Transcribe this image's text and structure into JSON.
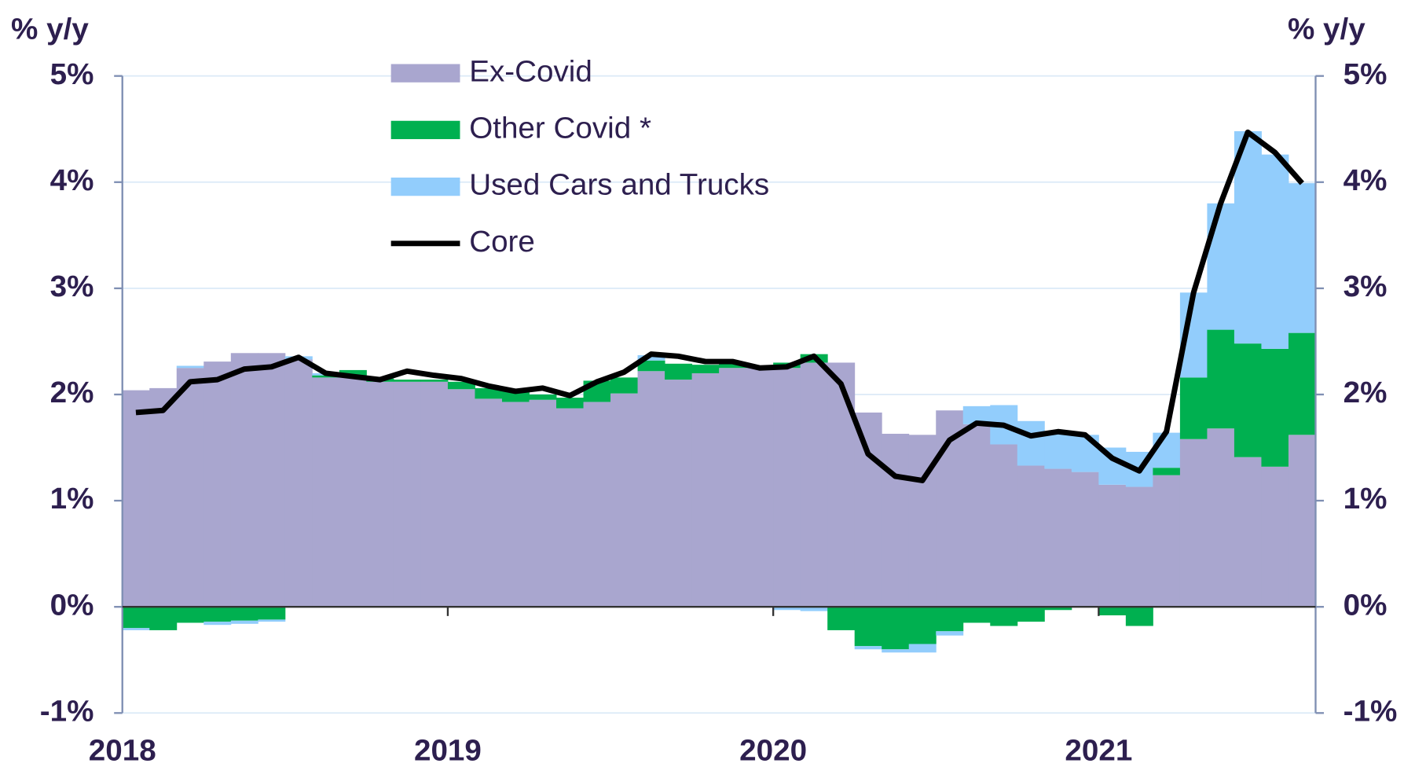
{
  "chart_data": {
    "type": "bar",
    "stacked": true,
    "y_title": "% y/y",
    "y2_title": "% y/y",
    "categories": [
      "2018",
      null,
      null,
      null,
      null,
      null,
      null,
      null,
      null,
      null,
      null,
      null,
      "2019",
      null,
      null,
      null,
      null,
      null,
      null,
      null,
      null,
      null,
      null,
      null,
      "2020",
      null,
      null,
      null,
      null,
      null,
      null,
      null,
      null,
      null,
      null,
      null,
      "2021",
      null,
      null,
      null,
      null,
      null,
      null,
      null
    ],
    "ylim": [
      -1,
      5
    ],
    "yticks": [
      {
        "value": -1,
        "label": "-1%"
      },
      {
        "value": 0,
        "label": "0%"
      },
      {
        "value": 1,
        "label": "1%"
      },
      {
        "value": 2,
        "label": "2%"
      },
      {
        "value": 3,
        "label": "3%"
      },
      {
        "value": 4,
        "label": "4%"
      },
      {
        "value": 5,
        "label": "5%"
      }
    ],
    "y2lim": [
      -1,
      5
    ],
    "y2ticks": [
      {
        "value": -1,
        "label": "-1%"
      },
      {
        "value": 0,
        "label": "0%"
      },
      {
        "value": 1,
        "label": "1%"
      },
      {
        "value": 2,
        "label": "2%"
      },
      {
        "value": 3,
        "label": "3%"
      },
      {
        "value": 4,
        "label": "4%"
      },
      {
        "value": 5,
        "label": "5%"
      }
    ],
    "grid": true,
    "legend": "top",
    "series": [
      {
        "name": "Ex-Covid",
        "color": "#a9a6cf",
        "type": "bar",
        "values": [
          2.04,
          2.06,
          2.25,
          2.31,
          2.39,
          2.39,
          2.33,
          2.16,
          2.18,
          2.12,
          2.12,
          2.12,
          2.05,
          1.96,
          1.93,
          1.95,
          1.87,
          1.93,
          2.01,
          2.22,
          2.14,
          2.2,
          2.25,
          2.25,
          2.25,
          2.3,
          2.3,
          1.83,
          1.63,
          1.62,
          1.85,
          1.72,
          1.53,
          1.33,
          1.3,
          1.27,
          1.15,
          1.13,
          1.24,
          1.58,
          1.68,
          1.41,
          1.32,
          1.62
        ]
      },
      {
        "name": "Other Covid *",
        "color": "#00b050",
        "type": "bar",
        "values": [
          -0.2,
          -0.22,
          -0.15,
          -0.14,
          -0.13,
          -0.12,
          0,
          0.02,
          0.05,
          0.03,
          0.02,
          0.02,
          0.07,
          0.1,
          0.1,
          0.05,
          0.1,
          0.2,
          0.15,
          0.1,
          0.15,
          0.08,
          0.04,
          0.02,
          0.05,
          0.08,
          -0.22,
          -0.37,
          -0.4,
          -0.35,
          -0.23,
          -0.15,
          -0.18,
          -0.14,
          -0.03,
          0,
          -0.08,
          -0.18,
          0.07,
          0.58,
          0.93,
          1.07,
          1.11,
          0.96
        ]
      },
      {
        "name": "Used Cars and Trucks",
        "color": "#92cdfc",
        "type": "bar",
        "values": [
          -0.02,
          0,
          0.02,
          -0.03,
          -0.03,
          -0.02,
          0.03,
          0.02,
          0,
          0,
          0,
          0,
          0,
          0,
          0,
          0,
          0,
          0,
          0,
          0.05,
          0,
          0,
          0,
          0,
          -0.03,
          -0.04,
          0,
          -0.03,
          -0.03,
          -0.08,
          -0.04,
          0.17,
          0.37,
          0.42,
          0.35,
          0.35,
          0.35,
          0.33,
          0.33,
          0.8,
          1.19,
          2.0,
          1.83,
          1.41
        ]
      },
      {
        "name": "Core",
        "color": "#000000",
        "type": "line",
        "values": [
          1.83,
          1.85,
          2.12,
          2.14,
          2.24,
          2.26,
          2.35,
          2.2,
          2.17,
          2.14,
          2.22,
          2.18,
          2.15,
          2.08,
          2.03,
          2.06,
          1.99,
          2.12,
          2.21,
          2.38,
          2.36,
          2.31,
          2.31,
          2.25,
          2.26,
          2.36,
          2.1,
          1.44,
          1.23,
          1.19,
          1.57,
          1.73,
          1.71,
          1.61,
          1.65,
          1.62,
          1.4,
          1.28,
          1.65,
          2.96,
          3.8,
          4.47,
          4.28,
          3.99
        ]
      }
    ]
  }
}
